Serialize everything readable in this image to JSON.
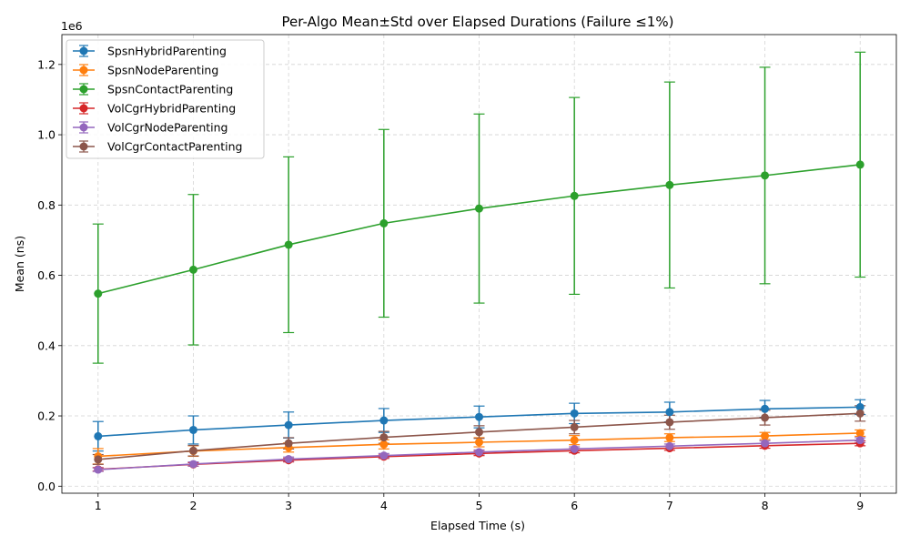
{
  "chart_data": {
    "type": "line",
    "title": "Per-Algo Mean±Std over Elapsed Durations (Failure ≤1%)",
    "xlabel": "Elapsed Time (s)",
    "ylabel": "Mean (ns)",
    "y_multiplier_label": "1e6",
    "x": [
      1,
      2,
      3,
      4,
      5,
      6,
      7,
      8,
      9
    ],
    "xlim": [
      0.62,
      9.38
    ],
    "ylim": [
      -20000,
      1285000
    ],
    "x_ticks": [
      "1",
      "2",
      "3",
      "4",
      "5",
      "6",
      "7",
      "8",
      "9"
    ],
    "y_ticks": [
      {
        "value": 0,
        "label": "0.0"
      },
      {
        "value": 200000,
        "label": "0.2"
      },
      {
        "value": 400000,
        "label": "0.4"
      },
      {
        "value": 600000,
        "label": "0.6"
      },
      {
        "value": 800000,
        "label": "0.8"
      },
      {
        "value": 1000000,
        "label": "1.0"
      },
      {
        "value": 1200000,
        "label": "1.2"
      }
    ],
    "grid": true,
    "legend_position": "top-left",
    "error_bars": true,
    "series": [
      {
        "name": "SpsnHybridParenting",
        "color": "#1f77b4",
        "values": [
          142000,
          160000,
          174000,
          187000,
          197000,
          207000,
          211000,
          220000,
          225000
        ],
        "std": [
          42000,
          40000,
          37000,
          34000,
          31000,
          29000,
          28000,
          24000,
          21000
        ]
      },
      {
        "name": "SpsnNodeParenting",
        "color": "#ff7f0e",
        "values": [
          85000,
          100000,
          110000,
          119000,
          125000,
          131000,
          138000,
          143000,
          151000
        ],
        "std": [
          22000,
          15000,
          13000,
          13000,
          13000,
          13000,
          11000,
          10000,
          9000
        ]
      },
      {
        "name": "SpsnContactParenting",
        "color": "#2ca02c",
        "values": [
          548000,
          616000,
          687000,
          748000,
          790000,
          826000,
          857000,
          884000,
          915000
        ],
        "std": [
          198000,
          214000,
          250000,
          267000,
          269000,
          280000,
          293000,
          308000,
          320000
        ]
      },
      {
        "name": "VolCgrHybridParenting",
        "color": "#d62728",
        "values": [
          48000,
          62000,
          74000,
          84000,
          93000,
          101000,
          108000,
          115000,
          122000
        ],
        "std": [
          5000,
          5000,
          5000,
          5000,
          6000,
          6000,
          6000,
          7000,
          7000
        ]
      },
      {
        "name": "VolCgrNodeParenting",
        "color": "#9467bd",
        "values": [
          47000,
          63000,
          77000,
          87000,
          97000,
          106000,
          114000,
          122000,
          131000
        ],
        "std": [
          5000,
          6000,
          6000,
          6000,
          6000,
          6000,
          6000,
          7000,
          7000
        ]
      },
      {
        "name": "VolCgrContactParenting",
        "color": "#8c564b",
        "values": [
          76000,
          101000,
          122000,
          139000,
          154000,
          168000,
          182000,
          195000,
          207000
        ],
        "std": [
          14000,
          15000,
          16000,
          17000,
          18000,
          19000,
          20000,
          21000,
          22000
        ]
      }
    ]
  }
}
